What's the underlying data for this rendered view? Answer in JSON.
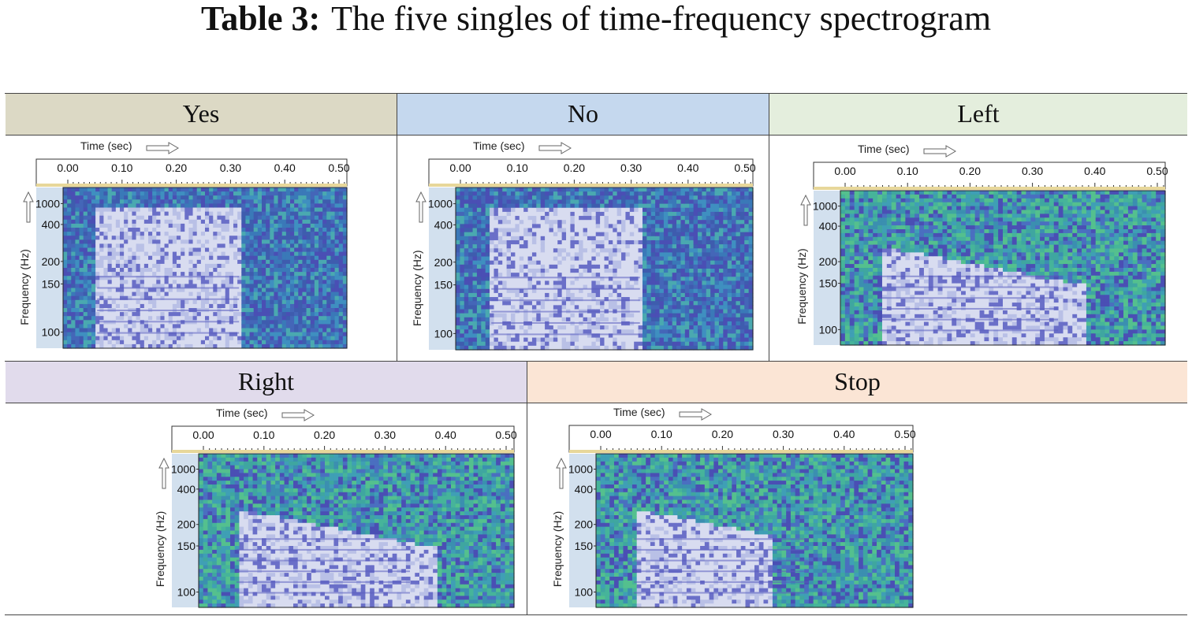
{
  "caption": {
    "label": "Table 3:",
    "text": "The five singles of time-frequency spectrogram"
  },
  "columns": [
    "Yes",
    "No",
    "Left",
    "Right",
    "Stop"
  ],
  "axis": {
    "time_label": "Time (sec)",
    "freq_label": "Frequency (Hz)"
  },
  "colors": {
    "yes": "#dcd9c5",
    "no": "#c5d8ee",
    "left": "#e4eedd",
    "right": "#e1dbec",
    "stop": "#fbe5d5"
  },
  "panels": [
    {
      "name": "Yes",
      "time_ticks": [
        "0.00",
        "0.10",
        "0.20",
        "0.30",
        "0.40",
        "0.50"
      ],
      "freq_ticks": [
        "1000",
        "400",
        "200",
        "150",
        "100"
      ]
    },
    {
      "name": "No",
      "time_ticks": [
        "0.00",
        "0.10",
        "0.20",
        "0.30",
        "0.40",
        "0.50"
      ],
      "freq_ticks": [
        "1000",
        "400",
        "200",
        "150",
        "100"
      ]
    },
    {
      "name": "Left",
      "time_ticks": [
        "0.00",
        "0.10",
        "0.20",
        "0.30",
        "0.40",
        "0.50"
      ],
      "freq_ticks": [
        "1000",
        "400",
        "200",
        "150",
        "100"
      ]
    },
    {
      "name": "Right",
      "time_ticks": [
        "0.00",
        "0.10",
        "0.20",
        "0.30",
        "0.40",
        "0.50"
      ],
      "freq_ticks": [
        "1000",
        "400",
        "200",
        "150",
        "100"
      ]
    },
    {
      "name": "Stop",
      "time_ticks": [
        "0.00",
        "0.10",
        "0.20",
        "0.30",
        "0.40",
        "0.50"
      ],
      "freq_ticks": [
        "1000",
        "400",
        "200",
        "150",
        "100"
      ]
    }
  ]
}
